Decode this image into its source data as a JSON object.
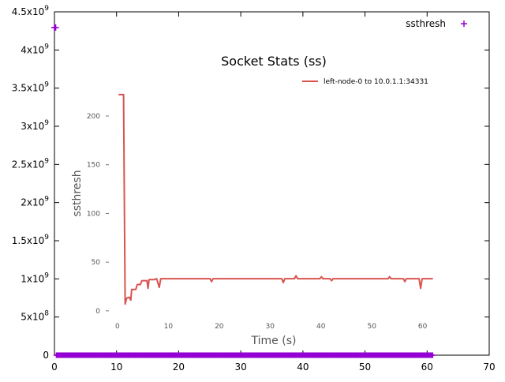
{
  "chart_data": [
    {
      "type": "scatter",
      "title": "",
      "xlabel": "",
      "ylabel": "",
      "xlim": [
        0,
        70
      ],
      "ylim": [
        0,
        4500000000
      ],
      "grid": false,
      "legend_position": "top-right",
      "x_ticks": [
        {
          "value": 0,
          "label": "0"
        },
        {
          "value": 10,
          "label": "10"
        },
        {
          "value": 20,
          "label": "20"
        },
        {
          "value": 30,
          "label": "30"
        },
        {
          "value": 40,
          "label": "40"
        },
        {
          "value": 50,
          "label": "50"
        },
        {
          "value": 60,
          "label": "60"
        },
        {
          "value": 70,
          "label": "70"
        }
      ],
      "y_ticks": [
        {
          "value": 0,
          "base": "0",
          "exp": ""
        },
        {
          "value": 500000000,
          "base": "5x10",
          "exp": "8"
        },
        {
          "value": 1000000000,
          "base": "1x10",
          "exp": "9"
        },
        {
          "value": 1500000000,
          "base": "1.5x10",
          "exp": "9"
        },
        {
          "value": 2000000000,
          "base": "2x10",
          "exp": "9"
        },
        {
          "value": 2500000000,
          "base": "2.5x10",
          "exp": "9"
        },
        {
          "value": 3000000000,
          "base": "3x10",
          "exp": "9"
        },
        {
          "value": 3500000000,
          "base": "3.5x10",
          "exp": "9"
        },
        {
          "value": 4000000000,
          "base": "4x10",
          "exp": "9"
        },
        {
          "value": 4500000000,
          "base": "4.5x10",
          "exp": "9"
        }
      ],
      "series": [
        {
          "name": "ssthresh",
          "color": "#9400d3",
          "marker": "plus",
          "points": [
            [
              0,
              4294967295
            ],
            [
              0.1,
              4294967295
            ],
            [
              0.2,
              4294967295
            ]
          ],
          "baseline": {
            "x_start": 0.3,
            "x_end": 61.0,
            "step": 0.15,
            "y": 0
          }
        }
      ],
      "legend": [
        {
          "label": "ssthresh",
          "color": "#9400d3",
          "marker": "plus"
        }
      ]
    },
    {
      "type": "line",
      "title": "Socket Stats (ss)",
      "xlabel": "Time (s)",
      "ylabel": "ssthresh",
      "xlim": [
        -2,
        63
      ],
      "ylim": [
        -5,
        230
      ],
      "grid": false,
      "legend_position": "top-right",
      "x_ticks": [
        {
          "value": 0,
          "label": "0"
        },
        {
          "value": 10,
          "label": "10"
        },
        {
          "value": 20,
          "label": "20"
        },
        {
          "value": 30,
          "label": "30"
        },
        {
          "value": 40,
          "label": "40"
        },
        {
          "value": 50,
          "label": "50"
        },
        {
          "value": 60,
          "label": "60"
        }
      ],
      "y_ticks": [
        {
          "value": 0,
          "label": "0"
        },
        {
          "value": 50,
          "label": "50"
        },
        {
          "value": 100,
          "label": "100"
        },
        {
          "value": 150,
          "label": "150"
        },
        {
          "value": 200,
          "label": "200"
        }
      ],
      "series": [
        {
          "name": "left-node-0 to 10.0.1.1:34331",
          "color": "#d9534f",
          "points": [
            [
              0.2,
              222
            ],
            [
              1.2,
              222
            ],
            [
              1.3,
              145
            ],
            [
              1.5,
              7
            ],
            [
              1.8,
              13
            ],
            [
              2.3,
              14
            ],
            [
              2.6,
              11
            ],
            [
              2.8,
              22
            ],
            [
              3.6,
              22
            ],
            [
              3.9,
              27
            ],
            [
              4.5,
              27
            ],
            [
              4.8,
              31
            ],
            [
              5.8,
              31
            ],
            [
              6.0,
              23
            ],
            [
              6.2,
              32
            ],
            [
              7.2,
              32
            ],
            [
              7.7,
              33
            ],
            [
              8.2,
              24
            ],
            [
              8.5,
              33
            ],
            [
              9.0,
              33
            ],
            [
              18.2,
              33
            ],
            [
              18.5,
              30
            ],
            [
              18.8,
              33
            ],
            [
              32.3,
              33
            ],
            [
              32.6,
              29
            ],
            [
              32.9,
              33
            ],
            [
              34.8,
              33
            ],
            [
              35.1,
              36
            ],
            [
              35.4,
              33
            ],
            [
              39.8,
              33
            ],
            [
              40.1,
              35
            ],
            [
              40.4,
              33
            ],
            [
              41.8,
              33
            ],
            [
              42.1,
              31
            ],
            [
              42.4,
              33
            ],
            [
              53.2,
              33
            ],
            [
              53.5,
              35
            ],
            [
              53.8,
              33
            ],
            [
              56.2,
              33
            ],
            [
              56.5,
              30
            ],
            [
              56.8,
              33
            ],
            [
              59.3,
              33
            ],
            [
              59.6,
              23
            ],
            [
              59.9,
              33
            ],
            [
              62.0,
              33
            ]
          ]
        }
      ],
      "legend": [
        {
          "label": "left-node-0 to 10.0.1.1:34331",
          "color": "#d9534f"
        }
      ]
    }
  ]
}
